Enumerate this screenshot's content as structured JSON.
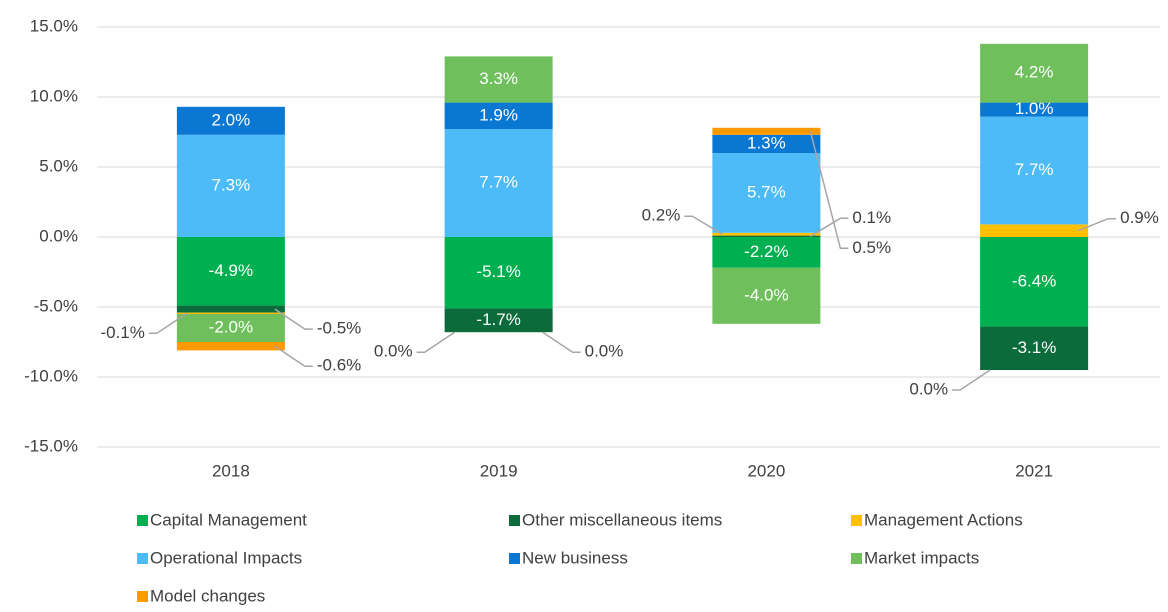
{
  "chart_data": {
    "type": "stacked-bar",
    "categories": [
      "2018",
      "2019",
      "2020",
      "2021"
    ],
    "series": [
      {
        "name": "Capital Management",
        "color": "#00b050",
        "values": [
          -4.9,
          -5.1,
          -2.2,
          -6.4
        ],
        "value_labels": [
          "-4.9%",
          "-5.1%",
          "-2.2%",
          "-6.4%"
        ]
      },
      {
        "name": "Other miscellaneous items",
        "color": "#0b6b3a",
        "values": [
          -0.5,
          -1.7,
          0.1,
          -3.1
        ],
        "value_labels": [
          "-0.5%",
          "-1.7%",
          "0.1%",
          "-3.1%"
        ]
      },
      {
        "name": "Management Actions",
        "color": "#ffc000",
        "values": [
          -0.1,
          0.0,
          0.2,
          0.9
        ],
        "value_labels": [
          "-0.1%",
          "0.0%",
          "0.2%",
          "0.9%"
        ]
      },
      {
        "name": "Operational Impacts",
        "color": "#4dbbf8",
        "values": [
          7.3,
          7.7,
          5.7,
          7.7
        ],
        "value_labels": [
          "7.3%",
          "7.7%",
          "5.7%",
          "7.7%"
        ]
      },
      {
        "name": "New business",
        "color": "#0a78d2",
        "values": [
          2.0,
          1.9,
          1.3,
          1.0
        ],
        "value_labels": [
          "2.0%",
          "1.9%",
          "1.3%",
          "1.0%"
        ]
      },
      {
        "name": "Market impacts",
        "color": "#6fc05c",
        "values": [
          -2.0,
          3.3,
          -4.0,
          4.2
        ],
        "value_labels": [
          "-2.0%",
          "3.3%",
          "-4.0%",
          "4.2%"
        ]
      },
      {
        "name": "Model changes",
        "color": "#ff9900",
        "values": [
          -0.6,
          0.0,
          0.5,
          0.0
        ],
        "value_labels": [
          "-0.6%",
          "0.0%",
          "0.5%",
          "0.0%"
        ]
      }
    ],
    "ylim": [
      -15,
      15
    ],
    "yticks": [
      {
        "value": -15,
        "label": "-15.0%"
      },
      {
        "value": -10,
        "label": "-10.0%"
      },
      {
        "value": -5,
        "label": "-5.0%"
      },
      {
        "value": 0,
        "label": "0.0%"
      },
      {
        "value": 5,
        "label": "5.0%"
      },
      {
        "value": 10,
        "label": "10.0%"
      },
      {
        "value": 15,
        "label": "15.0%"
      }
    ],
    "grid": true,
    "legend": "bottom"
  }
}
